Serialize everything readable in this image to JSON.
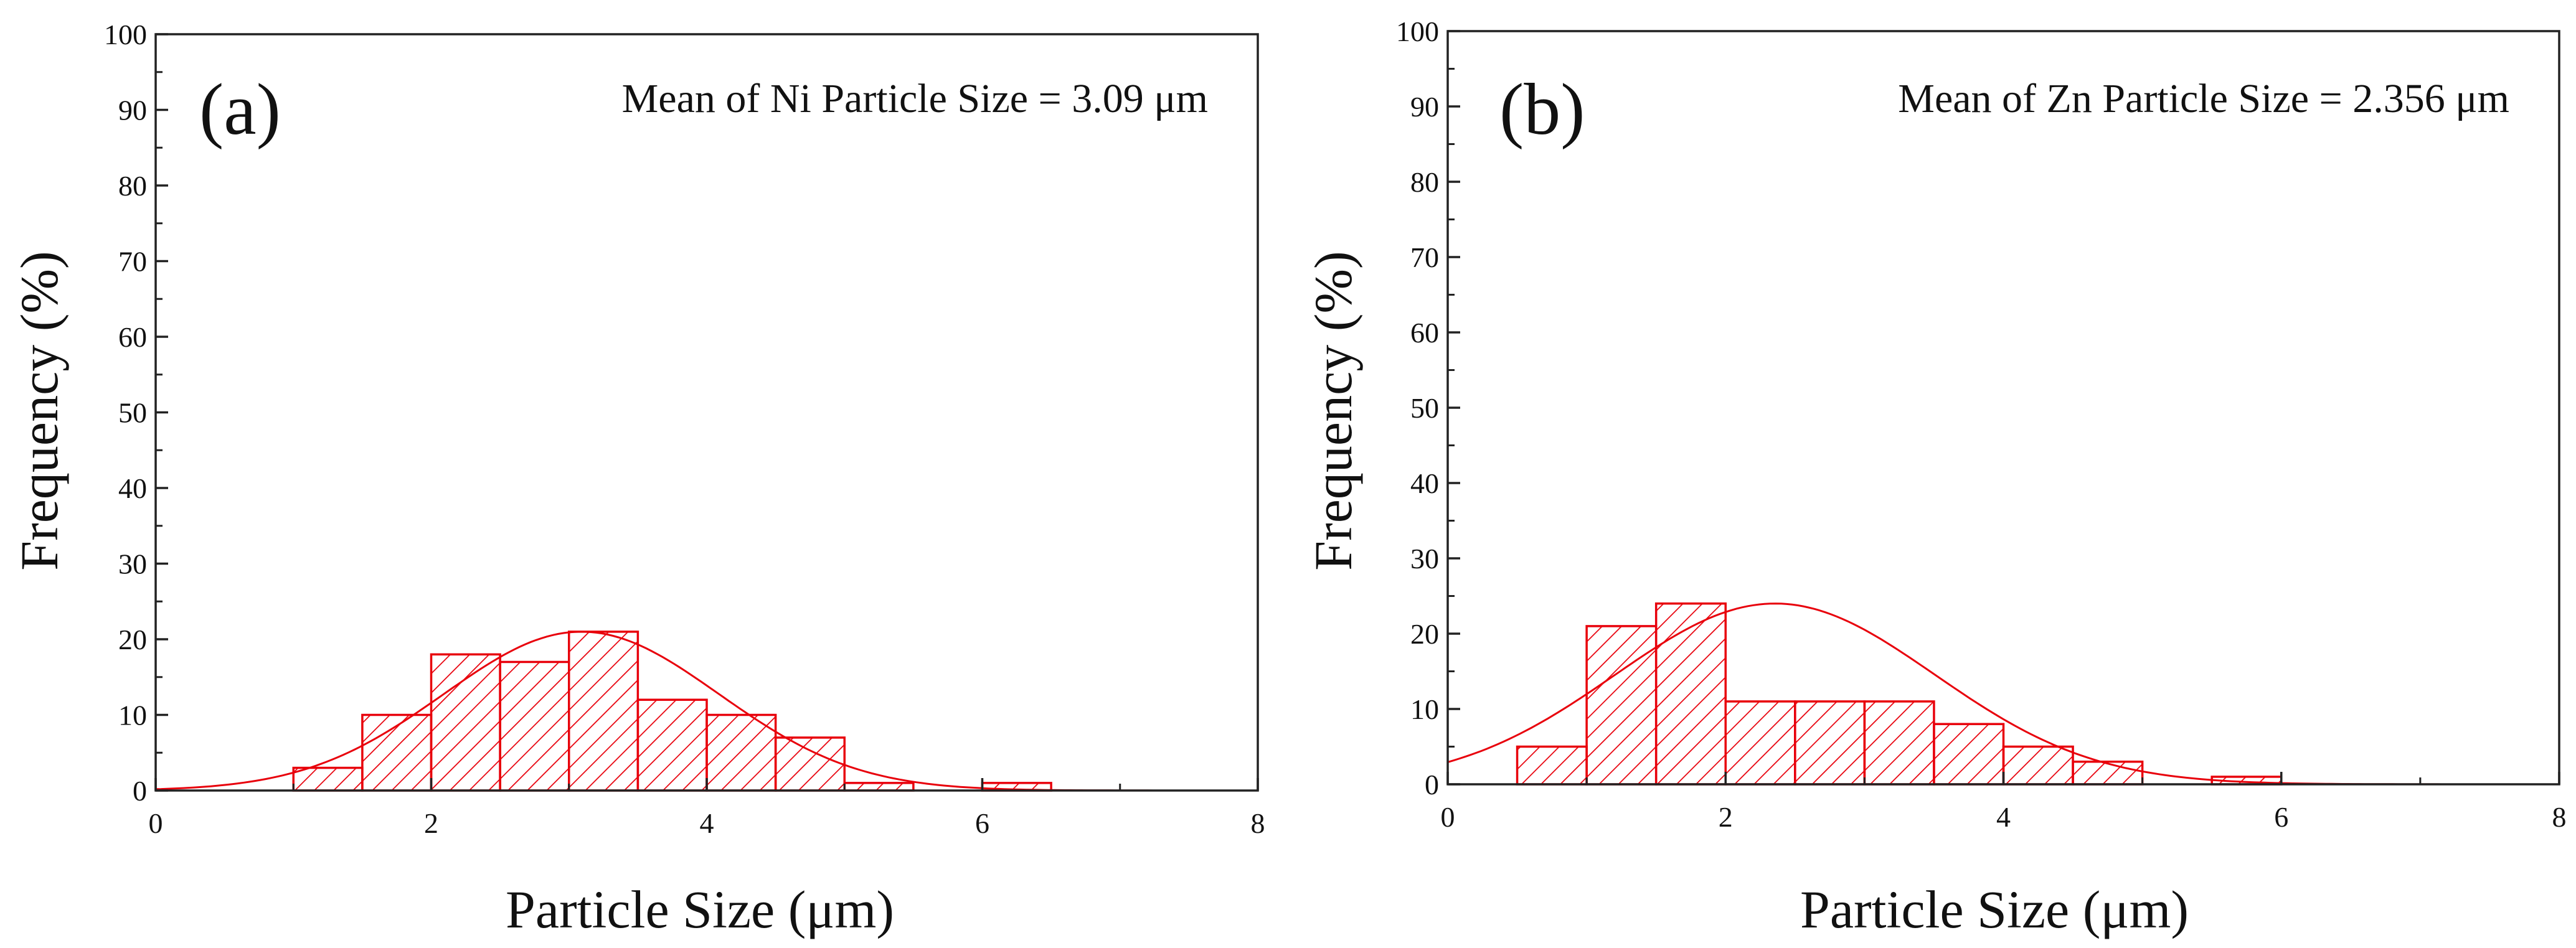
{
  "chart_data": [
    {
      "type": "bar",
      "subtype": "histogram-with-normal-fit",
      "panel_label": "(a)",
      "annotation": "Mean of Ni Particle Size = 3.09 μm",
      "xlabel": "Particle Size (μm)",
      "ylabel": "Frequency (%)",
      "xlim": [
        0,
        8
      ],
      "ylim": [
        0,
        100
      ],
      "xticks": [
        0,
        2,
        4,
        6,
        8
      ],
      "yticks": [
        0,
        10,
        20,
        30,
        40,
        50,
        60,
        70,
        80,
        90,
        100
      ],
      "bin_width": 0.5,
      "bins": [
        {
          "start": 1.0,
          "end": 1.5,
          "value": 3
        },
        {
          "start": 1.5,
          "end": 2.0,
          "value": 10
        },
        {
          "start": 2.0,
          "end": 2.5,
          "value": 18
        },
        {
          "start": 2.5,
          "end": 3.0,
          "value": 17
        },
        {
          "start": 3.0,
          "end": 3.5,
          "value": 21
        },
        {
          "start": 3.5,
          "end": 4.0,
          "value": 12
        },
        {
          "start": 4.0,
          "end": 4.5,
          "value": 10
        },
        {
          "start": 4.5,
          "end": 5.0,
          "value": 7
        },
        {
          "start": 5.0,
          "end": 5.5,
          "value": 1
        },
        {
          "start": 6.0,
          "end": 6.5,
          "value": 1
        }
      ],
      "fit": {
        "kind": "normal",
        "mean": 3.09,
        "sd": 1.0,
        "peak": 21
      },
      "color": "#e8000b",
      "grid": false
    },
    {
      "type": "bar",
      "subtype": "histogram-with-normal-fit",
      "panel_label": "(b)",
      "annotation": "Mean of Zn Particle Size = 2.356 μm",
      "xlabel": "Particle Size (μm)",
      "ylabel": "Frequency (%)",
      "xlim": [
        0,
        8
      ],
      "ylim": [
        0,
        100
      ],
      "xticks": [
        0,
        2,
        4,
        6,
        8
      ],
      "yticks": [
        0,
        10,
        20,
        30,
        40,
        50,
        60,
        70,
        80,
        90,
        100
      ],
      "bin_width": 0.5,
      "bins": [
        {
          "start": 0.5,
          "end": 1.0,
          "value": 5
        },
        {
          "start": 1.0,
          "end": 1.5,
          "value": 21
        },
        {
          "start": 1.5,
          "end": 2.0,
          "value": 24
        },
        {
          "start": 2.0,
          "end": 2.5,
          "value": 11
        },
        {
          "start": 2.5,
          "end": 3.0,
          "value": 11
        },
        {
          "start": 3.0,
          "end": 3.5,
          "value": 11
        },
        {
          "start": 3.5,
          "end": 4.0,
          "value": 8
        },
        {
          "start": 4.0,
          "end": 4.5,
          "value": 5
        },
        {
          "start": 4.5,
          "end": 5.0,
          "value": 3
        },
        {
          "start": 5.5,
          "end": 6.0,
          "value": 1
        }
      ],
      "fit": {
        "kind": "normal",
        "mean": 2.356,
        "sd": 1.15,
        "peak": 24
      },
      "color": "#e8000b",
      "grid": false
    }
  ]
}
